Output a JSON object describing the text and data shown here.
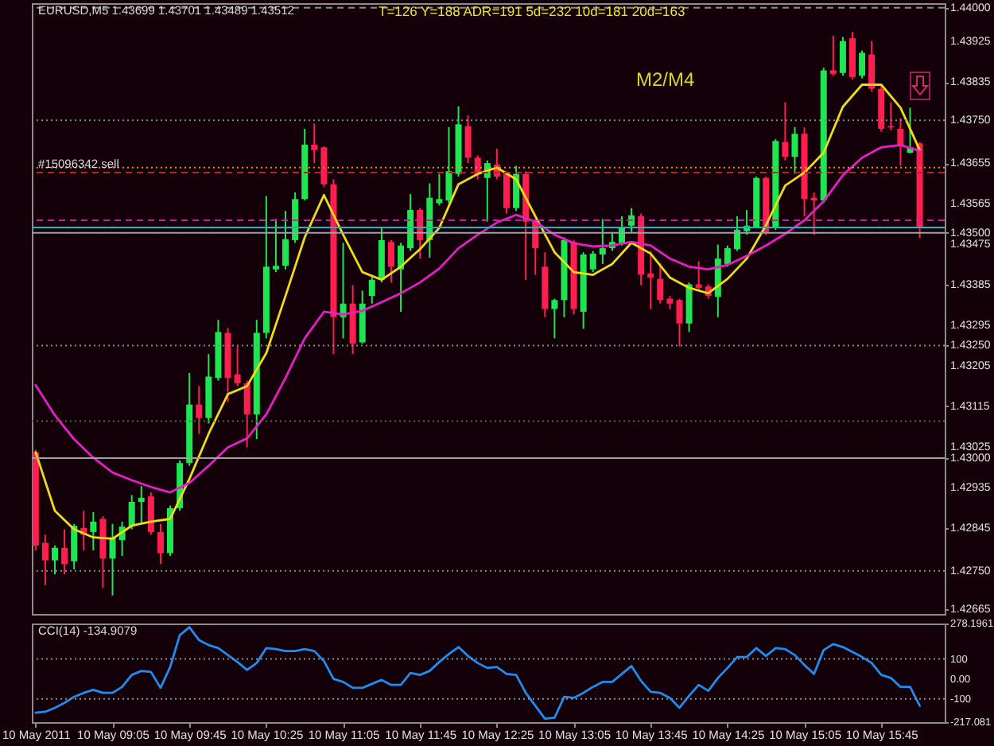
{
  "chart_data": [
    {
      "type": "candlestick",
      "title": "EURUSD,M5 1.43699 1.43701 1.43489 1.43512",
      "annotations": [
        "T=126 Y=188 ADR=191 5d=232 10d=181 20d=163",
        "M2/M4"
      ],
      "x": [
        "2011-05-10T08:25",
        "2011-05-10T08:30",
        "2011-05-10T08:35",
        "2011-05-10T08:40",
        "2011-05-10T08:45",
        "2011-05-10T08:50",
        "2011-05-10T08:55",
        "2011-05-10T09:00",
        "2011-05-10T09:05",
        "2011-05-10T09:10",
        "2011-05-10T09:15",
        "2011-05-10T09:20",
        "2011-05-10T09:25",
        "2011-05-10T09:30",
        "2011-05-10T09:35",
        "2011-05-10T09:40",
        "2011-05-10T09:45",
        "2011-05-10T09:50",
        "2011-05-10T09:55",
        "2011-05-10T10:00",
        "2011-05-10T10:05",
        "2011-05-10T10:10",
        "2011-05-10T10:15",
        "2011-05-10T10:20",
        "2011-05-10T10:25",
        "2011-05-10T10:30",
        "2011-05-10T10:35",
        "2011-05-10T10:40",
        "2011-05-10T10:45",
        "2011-05-10T10:50",
        "2011-05-10T10:55",
        "2011-05-10T11:00",
        "2011-05-10T11:05",
        "2011-05-10T11:10",
        "2011-05-10T11:15",
        "2011-05-10T11:20",
        "2011-05-10T11:25",
        "2011-05-10T11:30",
        "2011-05-10T11:35",
        "2011-05-10T11:40",
        "2011-05-10T11:45",
        "2011-05-10T11:50",
        "2011-05-10T11:55",
        "2011-05-10T12:00",
        "2011-05-10T12:05",
        "2011-05-10T12:10",
        "2011-05-10T12:15",
        "2011-05-10T12:20",
        "2011-05-10T12:25",
        "2011-05-10T12:30",
        "2011-05-10T12:35",
        "2011-05-10T12:40",
        "2011-05-10T12:45",
        "2011-05-10T12:50",
        "2011-05-10T12:55",
        "2011-05-10T13:00",
        "2011-05-10T13:05",
        "2011-05-10T13:10",
        "2011-05-10T13:15",
        "2011-05-10T13:20",
        "2011-05-10T13:25",
        "2011-05-10T13:30",
        "2011-05-10T13:35",
        "2011-05-10T13:40",
        "2011-05-10T13:45",
        "2011-05-10T13:50",
        "2011-05-10T13:55",
        "2011-05-10T14:00",
        "2011-05-10T14:05",
        "2011-05-10T14:10",
        "2011-05-10T14:15",
        "2011-05-10T14:20",
        "2011-05-10T14:25",
        "2011-05-10T14:30",
        "2011-05-10T14:35",
        "2011-05-10T14:40",
        "2011-05-10T14:45",
        "2011-05-10T14:50",
        "2011-05-10T14:55",
        "2011-05-10T15:00",
        "2011-05-10T15:05",
        "2011-05-10T15:10",
        "2011-05-10T15:15",
        "2011-05-10T15:20",
        "2011-05-10T15:25",
        "2011-05-10T15:30",
        "2011-05-10T15:35",
        "2011-05-10T15:40",
        "2011-05-10T15:45",
        "2011-05-10T15:50",
        "2011-05-10T15:55",
        "2011-05-10T16:00",
        "2011-05-10T16:05"
      ],
      "ohlc": [
        [
          1.43013,
          1.43018,
          1.42795,
          1.42806
        ],
        [
          1.42812,
          1.4283,
          1.42718,
          1.42773
        ],
        [
          1.42773,
          1.42806,
          1.42742,
          1.42801
        ],
        [
          1.42801,
          1.42842,
          1.42742,
          1.42765
        ],
        [
          1.42771,
          1.42854,
          1.42753,
          1.4285
        ],
        [
          1.42845,
          1.42883,
          1.42795,
          1.4283
        ],
        [
          1.42836,
          1.4288,
          1.42795,
          1.42859
        ],
        [
          1.42865,
          1.42871,
          1.42712,
          1.42777
        ],
        [
          1.42777,
          1.42854,
          1.42695,
          1.42824
        ],
        [
          1.42818,
          1.42859,
          1.42783,
          1.42848
        ],
        [
          1.42848,
          1.42918,
          1.42842,
          1.42903
        ],
        [
          1.42903,
          1.42938,
          1.42854,
          1.42912
        ],
        [
          1.42915,
          1.42924,
          1.4283,
          1.42836
        ],
        [
          1.42836,
          1.42854,
          1.42765,
          1.42789
        ],
        [
          1.42789,
          1.42895,
          1.42783,
          1.42889
        ],
        [
          1.42889,
          1.42995,
          1.42883,
          1.42989
        ],
        [
          1.42989,
          1.43189,
          1.42983,
          1.43119
        ],
        [
          1.43119,
          1.4316,
          1.43054,
          1.43089
        ],
        [
          1.43089,
          1.43231,
          1.43077,
          1.43181
        ],
        [
          1.43178,
          1.43307,
          1.43172,
          1.4328
        ],
        [
          1.43278,
          1.43289,
          1.43125,
          1.43178
        ],
        [
          1.43186,
          1.43248,
          1.4316,
          1.43166
        ],
        [
          1.43166,
          1.43172,
          1.43024,
          1.43097
        ],
        [
          1.43097,
          1.43307,
          1.43042,
          1.43278
        ],
        [
          1.43278,
          1.43582,
          1.43266,
          1.43425
        ],
        [
          1.43419,
          1.43531,
          1.43413,
          1.43427
        ],
        [
          1.43427,
          1.43549,
          1.43419,
          1.43486
        ],
        [
          1.43484,
          1.4359,
          1.43478,
          1.43575
        ],
        [
          1.43575,
          1.43731,
          1.43572,
          1.43696
        ],
        [
          1.43696,
          1.43743,
          1.43655,
          1.43684
        ],
        [
          1.4369,
          1.43692,
          1.43602,
          1.43608
        ],
        [
          1.43608,
          1.43619,
          1.43231,
          1.43313
        ],
        [
          1.43313,
          1.43478,
          1.43266,
          1.43343
        ],
        [
          1.43343,
          1.43384,
          1.43231,
          1.43254
        ],
        [
          1.43257,
          1.43372,
          1.43254,
          1.43343
        ],
        [
          1.4336,
          1.43407,
          1.43343,
          1.43396
        ],
        [
          1.43396,
          1.43513,
          1.4339,
          1.43484
        ],
        [
          1.4348,
          1.43484,
          1.4339,
          1.43425
        ],
        [
          1.43419,
          1.43478,
          1.43325,
          1.43472
        ],
        [
          1.43466,
          1.43586,
          1.4346,
          1.43551
        ],
        [
          1.43551,
          1.43555,
          1.43443,
          1.43484
        ],
        [
          1.43484,
          1.4361,
          1.43445,
          1.43578
        ],
        [
          1.43566,
          1.43631,
          1.43561,
          1.43575
        ],
        [
          1.43572,
          1.43735,
          1.43566,
          1.43637
        ],
        [
          1.43631,
          1.43781,
          1.43625,
          1.43741
        ],
        [
          1.43737,
          1.43761,
          1.43655,
          1.43667
        ],
        [
          1.43667,
          1.43672,
          1.43619,
          1.43631
        ],
        [
          1.43622,
          1.43661,
          1.43525,
          1.43655
        ],
        [
          1.43652,
          1.43687,
          1.43619,
          1.43625
        ],
        [
          1.43631,
          1.43637,
          1.43543,
          1.43555
        ],
        [
          1.43555,
          1.43649,
          1.43549,
          1.43631
        ],
        [
          1.43631,
          1.43637,
          1.43396,
          1.43525
        ],
        [
          1.43525,
          1.43531,
          1.43407,
          1.43466
        ],
        [
          1.43425,
          1.43457,
          1.43313,
          1.43331
        ],
        [
          1.43331,
          1.43354,
          1.43266,
          1.43351
        ],
        [
          1.43351,
          1.4349,
          1.43313,
          1.43484
        ],
        [
          1.4348,
          1.43484,
          1.43319,
          1.43331
        ],
        [
          1.43325,
          1.43457,
          1.43287,
          1.43452
        ],
        [
          1.43419,
          1.4346,
          1.43413,
          1.43454
        ],
        [
          1.43452,
          1.43531,
          1.43431,
          1.43466
        ],
        [
          1.43466,
          1.43502,
          1.4346,
          1.4348
        ],
        [
          1.43478,
          1.43537,
          1.43472,
          1.43511
        ],
        [
          1.43516,
          1.43555,
          1.43502,
          1.43539
        ],
        [
          1.43537,
          1.43543,
          1.43384,
          1.43407
        ],
        [
          1.4341,
          1.4346,
          1.43331,
          1.43401
        ],
        [
          1.43398,
          1.43433,
          1.43343,
          1.43351
        ],
        [
          1.43354,
          1.4336,
          1.43331,
          1.43343
        ],
        [
          1.43351,
          1.43354,
          1.43248,
          1.43299
        ],
        [
          1.43299,
          1.4339,
          1.4328,
          1.43386
        ],
        [
          1.43386,
          1.43437,
          1.43372,
          1.43378
        ],
        [
          1.43381,
          1.43386,
          1.43354,
          1.4336
        ],
        [
          1.43358,
          1.43474,
          1.43313,
          1.43443
        ],
        [
          1.43431,
          1.43472,
          1.43425,
          1.43466
        ],
        [
          1.43464,
          1.43537,
          1.4346,
          1.43507
        ],
        [
          1.43504,
          1.43551,
          1.43496,
          1.43516
        ],
        [
          1.43513,
          1.43625,
          1.43511,
          1.43622
        ],
        [
          1.43622,
          1.43625,
          1.43496,
          1.43502
        ],
        [
          1.43511,
          1.43708,
          1.43507,
          1.43704
        ],
        [
          1.43702,
          1.4379,
          1.43661,
          1.43669
        ],
        [
          1.43669,
          1.43735,
          1.43631,
          1.4372
        ],
        [
          1.4372,
          1.43734,
          1.43537,
          1.43575
        ],
        [
          1.43578,
          1.4359,
          1.43496,
          1.43572
        ],
        [
          1.43572,
          1.43867,
          1.43566,
          1.43861
        ],
        [
          1.43861,
          1.43938,
          1.43849,
          1.43853
        ],
        [
          1.43855,
          1.43935,
          1.43849,
          1.43926
        ],
        [
          1.43932,
          1.43946,
          1.43841,
          1.43846
        ],
        [
          1.43849,
          1.43905,
          1.43843,
          1.439
        ],
        [
          1.43896,
          1.43926,
          1.43814,
          1.4382
        ],
        [
          1.4382,
          1.43829,
          1.43725,
          1.43731
        ],
        [
          1.43737,
          1.4379,
          1.43728,
          1.43734
        ],
        [
          1.43731,
          1.43755,
          1.43649,
          1.43692
        ],
        [
          1.43678,
          1.43778,
          1.43676,
          1.4369
        ],
        [
          1.43699,
          1.43701,
          1.43489,
          1.43512
        ]
      ],
      "colors": [
        "#ff1e50",
        "#ff1e50",
        "#1ee650",
        "#ff1e50",
        "#1ee650",
        "#ff1e50",
        "#1ee650",
        "#ff1e50",
        "#1ee650",
        "#1ee650",
        "#1ee650",
        "#1ee650",
        "#ff1e50",
        "#ff1e50",
        "#1ee650",
        "#1ee650",
        "#1ee650",
        "#ff1e50",
        "#1ee650",
        "#1ee650",
        "#ff1e50",
        "#ff1e50",
        "#ff1e50",
        "#1ee650",
        "#1ee650",
        "#1ee650",
        "#1ee650",
        "#1ee650",
        "#1ee650",
        "#ff1e50",
        "#ff1e50",
        "#ff1e50",
        "#1ee650",
        "#ff1e50",
        "#1ee650",
        "#1ee650",
        "#1ee650",
        "#ff1e50",
        "#1ee650",
        "#1ee650",
        "#ff1e50",
        "#1ee650",
        "#1ee650",
        "#1ee650",
        "#1ee650",
        "#ff1e50",
        "#ff1e50",
        "#1ee650",
        "#ff1e50",
        "#ff1e50",
        "#1ee650",
        "#ff1e50",
        "#ff1e50",
        "#ff1e50",
        "#1ee650",
        "#1ee650",
        "#ff1e50",
        "#1ee650",
        "#1ee650",
        "#1ee650",
        "#1ee650",
        "#1ee650",
        "#1ee650",
        "#ff1e50",
        "#ff1e50",
        "#ff1e50",
        "#ff1e50",
        "#ff1e50",
        "#1ee650",
        "#ff1e50",
        "#ff1e50",
        "#1ee650",
        "#1ee650",
        "#1ee650",
        "#1ee650",
        "#1ee650",
        "#ff1e50",
        "#1ee650",
        "#ff1e50",
        "#1ee650",
        "#ff1e50",
        "#ff1e50",
        "#1ee650",
        "#ff1e50",
        "#1ee650",
        "#ff1e50",
        "#1ee650",
        "#ff1e50",
        "#ff1e50",
        "#ff1e50",
        "#ff1e50",
        "#1ee650",
        "#ff1e50"
      ],
      "series": [
        {
          "type": "line",
          "color": "#f0dc14",
          "x": [
            "2011-05-10T08:25",
            "2011-05-10T08:35",
            "2011-05-10T08:45",
            "2011-05-10T08:55",
            "2011-05-10T09:05",
            "2011-05-10T09:15",
            "2011-05-10T09:25",
            "2011-05-10T09:35",
            "2011-05-10T09:45",
            "2011-05-10T09:55",
            "2011-05-10T10:05",
            "2011-05-10T10:15",
            "2011-05-10T10:25",
            "2011-05-10T10:35",
            "2011-05-10T10:45",
            "2011-05-10T10:55",
            "2011-05-10T11:05",
            "2011-05-10T11:15",
            "2011-05-10T11:25",
            "2011-05-10T11:35",
            "2011-05-10T11:45",
            "2011-05-10T11:55",
            "2011-05-10T12:05",
            "2011-05-10T12:15",
            "2011-05-10T12:25",
            "2011-05-10T12:35",
            "2011-05-10T12:45",
            "2011-05-10T12:55",
            "2011-05-10T13:05",
            "2011-05-10T13:15",
            "2011-05-10T13:25",
            "2011-05-10T13:35",
            "2011-05-10T13:45",
            "2011-05-10T13:55",
            "2011-05-10T14:05",
            "2011-05-10T14:15",
            "2011-05-10T14:25",
            "2011-05-10T14:35",
            "2011-05-10T14:45",
            "2011-05-10T14:55",
            "2011-05-10T15:05",
            "2011-05-10T15:15",
            "2011-05-10T15:25",
            "2011-05-10T15:35",
            "2011-05-10T15:45",
            "2011-05-10T15:55",
            "2011-05-10T16:05"
          ],
          "values": [
            1.43013,
            1.42883,
            1.42842,
            1.42824,
            1.42821,
            1.4285,
            1.42859,
            1.42865,
            1.42954,
            1.43054,
            1.43142,
            1.4316,
            1.43233,
            1.4336,
            1.4349,
            1.43584,
            1.43496,
            1.43413,
            1.43396,
            1.43425,
            1.43464,
            1.43511,
            1.43608,
            1.43631,
            1.43645,
            1.43619,
            1.43537,
            1.43457,
            1.43413,
            1.43407,
            1.43431,
            1.43478,
            1.43454,
            1.43401,
            1.43378,
            1.43366,
            1.43398,
            1.43443,
            1.43517,
            1.43605,
            1.43634,
            1.43678,
            1.4378,
            1.43829,
            1.43829,
            1.43778,
            1.43684
          ]
        },
        {
          "type": "line",
          "color": "#e61ec8",
          "x": [
            "2011-05-10T08:25",
            "2011-05-10T08:35",
            "2011-05-10T08:45",
            "2011-05-10T08:55",
            "2011-05-10T09:05",
            "2011-05-10T09:15",
            "2011-05-10T09:25",
            "2011-05-10T09:35",
            "2011-05-10T09:45",
            "2011-05-10T09:55",
            "2011-05-10T10:05",
            "2011-05-10T10:15",
            "2011-05-10T10:25",
            "2011-05-10T10:35",
            "2011-05-10T10:45",
            "2011-05-10T10:55",
            "2011-05-10T11:05",
            "2011-05-10T11:15",
            "2011-05-10T11:25",
            "2011-05-10T11:35",
            "2011-05-10T11:45",
            "2011-05-10T11:55",
            "2011-05-10T12:05",
            "2011-05-10T12:15",
            "2011-05-10T12:25",
            "2011-05-10T12:35",
            "2011-05-10T12:45",
            "2011-05-10T12:55",
            "2011-05-10T13:05",
            "2011-05-10T13:15",
            "2011-05-10T13:25",
            "2011-05-10T13:35",
            "2011-05-10T13:45",
            "2011-05-10T13:55",
            "2011-05-10T14:05",
            "2011-05-10T14:15",
            "2011-05-10T14:25",
            "2011-05-10T14:35",
            "2011-05-10T14:45",
            "2011-05-10T14:55",
            "2011-05-10T15:05",
            "2011-05-10T15:15",
            "2011-05-10T15:25",
            "2011-05-10T15:35",
            "2011-05-10T15:45",
            "2011-05-10T15:55",
            "2011-05-10T16:05"
          ],
          "values": [
            1.43162,
            1.43095,
            1.43042,
            1.43001,
            1.42968,
            1.42951,
            1.42936,
            1.42924,
            1.42945,
            1.42983,
            1.43024,
            1.43044,
            1.43097,
            1.43178,
            1.43266,
            1.43325,
            1.43319,
            1.43327,
            1.43346,
            1.43366,
            1.4339,
            1.43421,
            1.43466,
            1.43496,
            1.43523,
            1.4354,
            1.43525,
            1.43496,
            1.43477,
            1.4347,
            1.43472,
            1.4348,
            1.43472,
            1.43443,
            1.43425,
            1.43419,
            1.43429,
            1.43449,
            1.43472,
            1.43498,
            1.43528,
            1.4357,
            1.43628,
            1.43667,
            1.4369,
            1.43695,
            1.43682
          ]
        }
      ],
      "xlim": [
        "2011-05-10T08:23",
        "2011-05-10T16:18"
      ],
      "ylim": [
        1.42654,
        1.4401
      ],
      "yticks": [
        1.42665,
        {
          "value": 1.4275,
          "label": "1.42750"
        },
        1.42845,
        1.42935,
        {
          "value": 1.43,
          "label": "1.43000"
        },
        1.43025,
        1.43115,
        1.43205,
        {
          "value": 1.4325,
          "label": "1.43250"
        },
        1.43295,
        1.43385,
        1.43475,
        {
          "value": 1.435,
          "label": "1.43500"
        },
        1.43565,
        1.43655,
        {
          "value": 1.4375,
          "label": "1.43750"
        },
        1.43835,
        1.43925,
        {
          "value": 1.44,
          "label": "1.44000"
        }
      ],
      "ref_lines": [
        {
          "axis": "y",
          "value": 1.44,
          "color": "#8c8c8c",
          "line_style": "dashed"
        },
        {
          "axis": "y",
          "value": 1.4375,
          "color": "#7a8c8c",
          "line_style": "dotted"
        },
        {
          "axis": "y",
          "value": 1.43645,
          "color": "#c8961e",
          "line_style": "dotted"
        },
        {
          "axis": "y",
          "value": 1.43634,
          "color": "#c81e1e",
          "line_style": "dashed",
          "label": "#15096342 sell"
        },
        {
          "axis": "y",
          "value": 1.43528,
          "color": "#c81eaa",
          "line_style": "dashed"
        },
        {
          "axis": "y",
          "value": 1.43512,
          "color": "#1eb4c8",
          "line_style": "solid"
        },
        {
          "axis": "y",
          "value": 1.435,
          "color": "#9aa0a8",
          "line_style": "solid"
        },
        {
          "axis": "y",
          "value": 1.4325,
          "color": "#7a8c8c",
          "line_style": "dotted"
        },
        {
          "axis": "y",
          "value": 1.43082,
          "color": "#3c7828",
          "line_style": "dotted"
        },
        {
          "axis": "y",
          "value": 1.43,
          "color": "#a0a0a0",
          "line_style": "solid"
        },
        {
          "axis": "y",
          "value": 1.4275,
          "color": "#7a8c8c",
          "line_style": "dotted"
        }
      ],
      "tick_labels": "y"
    },
    {
      "type": "line",
      "title": "CCI(14) -134.9079",
      "x": [
        "2011-05-10T08:25",
        "2011-05-10T08:30",
        "2011-05-10T08:35",
        "2011-05-10T08:40",
        "2011-05-10T08:45",
        "2011-05-10T08:50",
        "2011-05-10T08:55",
        "2011-05-10T09:00",
        "2011-05-10T09:05",
        "2011-05-10T09:10",
        "2011-05-10T09:15",
        "2011-05-10T09:20",
        "2011-05-10T09:25",
        "2011-05-10T09:30",
        "2011-05-10T09:35",
        "2011-05-10T09:40",
        "2011-05-10T09:45",
        "2011-05-10T09:50",
        "2011-05-10T09:55",
        "2011-05-10T10:00",
        "2011-05-10T10:05",
        "2011-05-10T10:10",
        "2011-05-10T10:15",
        "2011-05-10T10:20",
        "2011-05-10T10:25",
        "2011-05-10T10:30",
        "2011-05-10T10:35",
        "2011-05-10T10:40",
        "2011-05-10T10:45",
        "2011-05-10T10:50",
        "2011-05-10T10:55",
        "2011-05-10T11:00",
        "2011-05-10T11:05",
        "2011-05-10T11:10",
        "2011-05-10T11:15",
        "2011-05-10T11:20",
        "2011-05-10T11:25",
        "2011-05-10T11:30",
        "2011-05-10T11:35",
        "2011-05-10T11:40",
        "2011-05-10T11:45",
        "2011-05-10T11:50",
        "2011-05-10T11:55",
        "2011-05-10T12:00",
        "2011-05-10T12:05",
        "2011-05-10T12:10",
        "2011-05-10T12:15",
        "2011-05-10T12:20",
        "2011-05-10T12:25",
        "2011-05-10T12:30",
        "2011-05-10T12:35",
        "2011-05-10T12:40",
        "2011-05-10T12:45",
        "2011-05-10T12:50",
        "2011-05-10T12:55",
        "2011-05-10T13:00",
        "2011-05-10T13:05",
        "2011-05-10T13:10",
        "2011-05-10T13:15",
        "2011-05-10T13:20",
        "2011-05-10T13:25",
        "2011-05-10T13:30",
        "2011-05-10T13:35",
        "2011-05-10T13:40",
        "2011-05-10T13:45",
        "2011-05-10T13:50",
        "2011-05-10T13:55",
        "2011-05-10T14:00",
        "2011-05-10T14:05",
        "2011-05-10T14:10",
        "2011-05-10T14:15",
        "2011-05-10T14:20",
        "2011-05-10T14:25",
        "2011-05-10T14:30",
        "2011-05-10T14:35",
        "2011-05-10T14:40",
        "2011-05-10T14:45",
        "2011-05-10T14:50",
        "2011-05-10T14:55",
        "2011-05-10T15:00",
        "2011-05-10T15:05",
        "2011-05-10T15:10",
        "2011-05-10T15:15",
        "2011-05-10T15:20",
        "2011-05-10T15:25",
        "2011-05-10T15:30",
        "2011-05-10T15:35",
        "2011-05-10T15:40",
        "2011-05-10T15:45",
        "2011-05-10T15:50",
        "2011-05-10T15:55",
        "2011-05-10T16:00",
        "2011-05-10T16:05"
      ],
      "series": [
        {
          "color": "#1e8cf0",
          "values": [
            -170,
            -165,
            -145,
            -120,
            -90,
            -70,
            -55,
            -70,
            -70,
            -40,
            20,
            40,
            35,
            -45,
            60,
            220,
            260,
            195,
            170,
            155,
            120,
            85,
            45,
            80,
            155,
            150,
            140,
            140,
            150,
            140,
            90,
            0,
            -15,
            -45,
            -45,
            -25,
            -5,
            -30,
            -30,
            30,
            20,
            40,
            85,
            125,
            160,
            115,
            80,
            55,
            60,
            25,
            20,
            -70,
            -135,
            -200,
            -195,
            -90,
            -95,
            -70,
            -40,
            -15,
            -15,
            25,
            65,
            -10,
            -65,
            -70,
            -95,
            -145,
            -85,
            -30,
            -60,
            5,
            55,
            110,
            110,
            155,
            115,
            155,
            150,
            120,
            70,
            25,
            145,
            175,
            160,
            135,
            110,
            80,
            20,
            5,
            -40,
            -40,
            -134.9079
          ]
        }
      ],
      "xlim": [
        "2011-05-10T08:23",
        "2011-05-10T16:18"
      ],
      "xticks": [
        {
          "value": "2011-05-10T08:25",
          "label": "10 May 2011"
        },
        {
          "value": "2011-05-10T09:05",
          "label": "10 May 09:05"
        },
        {
          "value": "2011-05-10T09:45",
          "label": "10 May 09:45"
        },
        {
          "value": "2011-05-10T10:25",
          "label": "10 May 10:25"
        },
        {
          "value": "2011-05-10T11:05",
          "label": "10 May 11:05"
        },
        {
          "value": "2011-05-10T11:45",
          "label": "10 May 11:45"
        },
        {
          "value": "2011-05-10T12:25",
          "label": "10 May 12:25"
        },
        {
          "value": "2011-05-10T13:05",
          "label": "10 May 13:05"
        },
        {
          "value": "2011-05-10T13:45",
          "label": "10 May 13:45"
        },
        {
          "value": "2011-05-10T14:25",
          "label": "10 May 14:25"
        },
        {
          "value": "2011-05-10T15:05",
          "label": "10 May 15:05"
        },
        {
          "value": "2011-05-10T15:45",
          "label": "10 May 15:45"
        }
      ],
      "ylim": [
        -217.081,
        278.1961
      ],
      "yticks": [
        278.1961,
        100,
        {
          "value": 0,
          "label": "0.00"
        },
        -100,
        -217.081
      ],
      "ref_lines": [
        {
          "axis": "y",
          "value": 100,
          "color": "#8c8c8c",
          "line_style": "dotted"
        },
        {
          "axis": "y",
          "value": -100,
          "color": "#8c8c8c",
          "line_style": "dotted"
        }
      ]
    }
  ]
}
